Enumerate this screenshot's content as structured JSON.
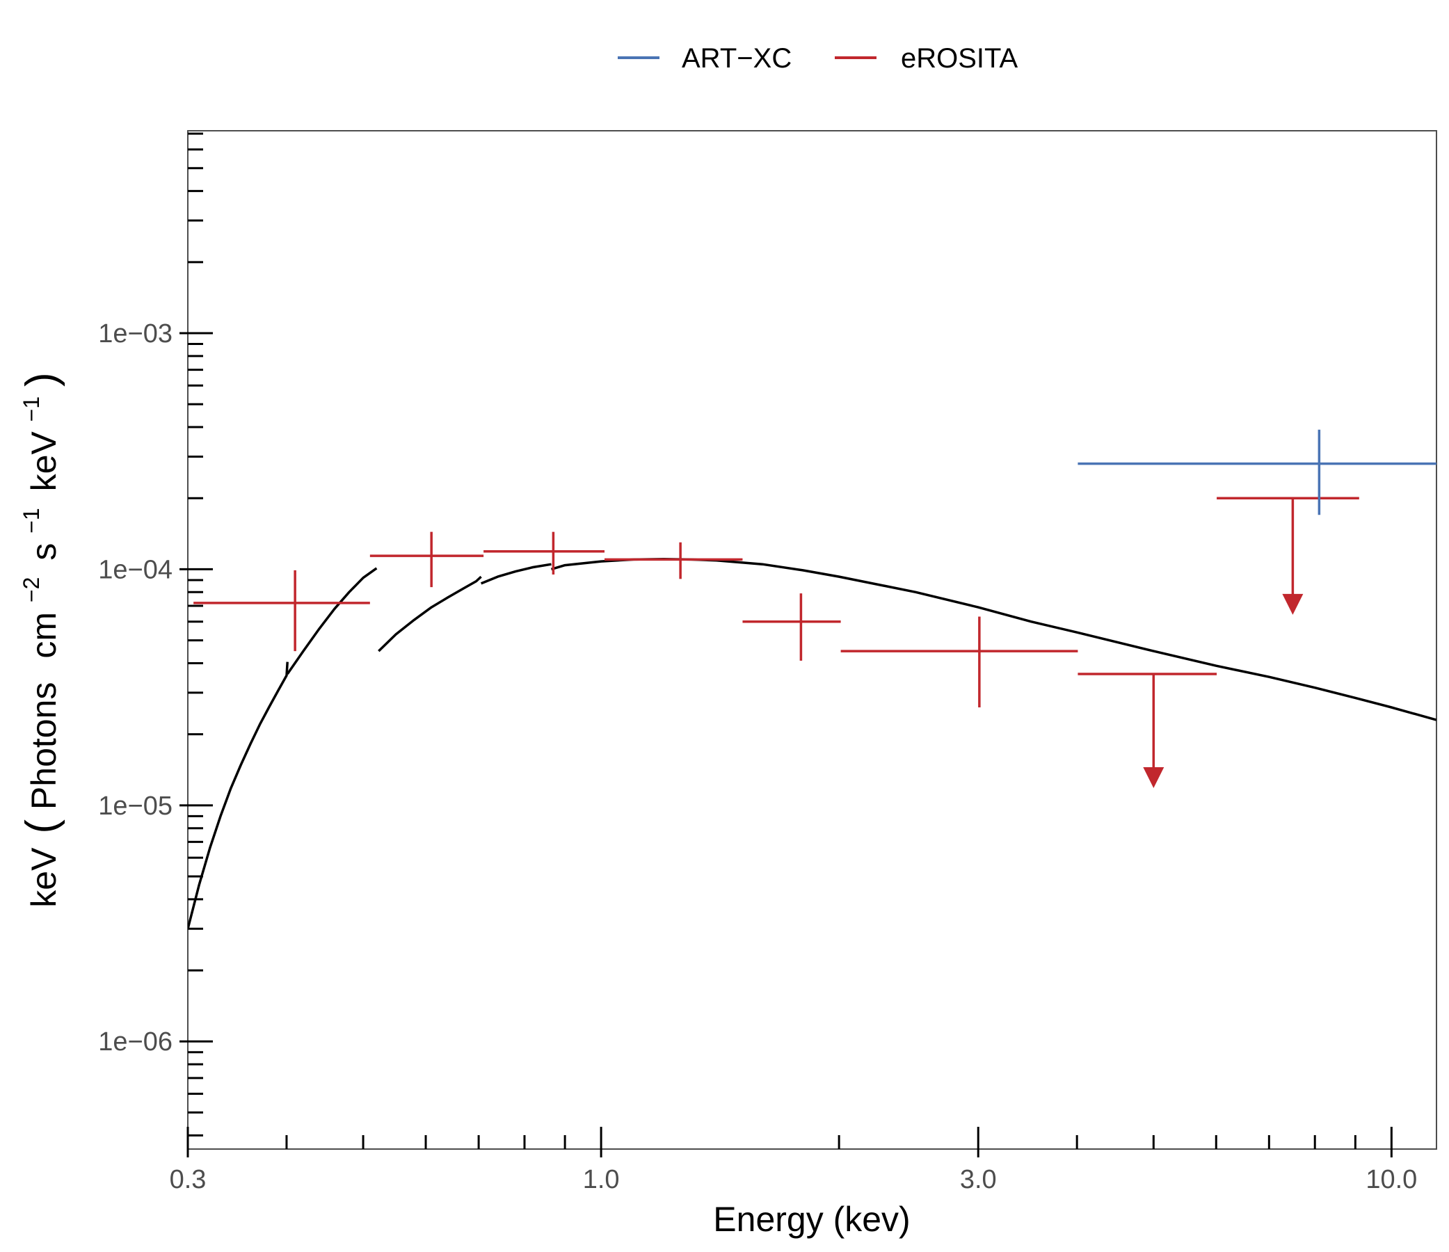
{
  "chart_data": {
    "type": "scatter",
    "title": "",
    "xlabel": "Energy (kev)",
    "ylabel": {
      "parts": [
        "keV",
        "(",
        "Photons",
        "cm",
        "−2",
        "s",
        "−1",
        "keV",
        "−1",
        ")"
      ]
    },
    "x_scale": "log",
    "y_scale": "log",
    "xlim": [
      0.3,
      11.4
    ],
    "ylim": [
      3.5e-07,
      0.0072
    ],
    "x_ticks": [
      {
        "value": 0.3,
        "label": "0.3"
      },
      {
        "value": 1.0,
        "label": "1.0"
      },
      {
        "value": 3.0,
        "label": "3.0"
      },
      {
        "value": 10.0,
        "label": "10.0"
      }
    ],
    "x_minor_ticks": [
      0.4,
      0.5,
      0.6,
      0.7,
      0.8,
      0.9,
      2.0,
      4.0,
      5.0,
      6.0,
      7.0,
      8.0,
      9.0
    ],
    "y_ticks": [
      {
        "value": 1e-06,
        "label": "1e−06"
      },
      {
        "value": 1e-05,
        "label": "1e−05"
      },
      {
        "value": 0.0001,
        "label": "1e−04"
      },
      {
        "value": 0.001,
        "label": "1e−03"
      }
    ],
    "y_minor_ticks": [
      4e-07,
      5e-07,
      6e-07,
      7e-07,
      8e-07,
      9e-07,
      2e-06,
      3e-06,
      4e-06,
      5e-06,
      6e-06,
      7e-06,
      8e-06,
      9e-06,
      2e-05,
      3e-05,
      4e-05,
      5e-05,
      6e-05,
      7e-05,
      8e-05,
      9e-05,
      0.0002,
      0.0003,
      0.0004,
      0.0005,
      0.0006,
      0.0007,
      0.0008,
      0.0009,
      0.002,
      0.003,
      0.004,
      0.005,
      0.006,
      0.007
    ],
    "grid": false,
    "legend": {
      "position": "top",
      "entries": [
        {
          "name": "ART−XC",
          "color": "#4a74b4"
        },
        {
          "name": "eROSITA",
          "color": "#c1272d"
        }
      ]
    },
    "series": [
      {
        "name": "eROSITA",
        "color": "#c1272d",
        "points": [
          {
            "x": 0.41,
            "xlo": 0.305,
            "xhi": 0.51,
            "y": 7.2e-05,
            "ylo": 4.5e-05,
            "yhi": 9.9e-05
          },
          {
            "x": 0.61,
            "xlo": 0.51,
            "xhi": 0.71,
            "y": 0.000114,
            "ylo": 8.4e-05,
            "yhi": 0.000144
          },
          {
            "x": 0.87,
            "xlo": 0.71,
            "xhi": 1.01,
            "y": 0.000119,
            "ylo": 9.5e-05,
            "yhi": 0.000144
          },
          {
            "x": 1.26,
            "xlo": 1.01,
            "xhi": 1.51,
            "y": 0.00011,
            "ylo": 9.1e-05,
            "yhi": 0.00013
          },
          {
            "x": 1.79,
            "xlo": 1.51,
            "xhi": 2.01,
            "y": 6e-05,
            "ylo": 4.1e-05,
            "yhi": 7.9e-05
          },
          {
            "x": 3.01,
            "xlo": 2.01,
            "xhi": 4.01,
            "y": 4.5e-05,
            "ylo": 2.6e-05,
            "yhi": 6.3e-05
          }
        ],
        "upper_limits": [
          {
            "x": 5.0,
            "xlo": 4.01,
            "xhi": 6.01,
            "y": 3.6e-05,
            "arrow_to": 1.2e-05
          },
          {
            "x": 7.5,
            "xlo": 6.01,
            "xhi": 9.1,
            "y": 0.0002,
            "arrow_to": 6.5e-05
          }
        ]
      },
      {
        "name": "ART−XC",
        "color": "#4a74b4",
        "points": [
          {
            "x": 8.1,
            "xlo": 4.01,
            "xhi": 11.4,
            "y": 0.00028,
            "ylo": 0.00017,
            "yhi": 0.00039
          }
        ]
      }
    ],
    "model": {
      "color": "#000000",
      "segments": [
        [
          [
            0.3,
            3e-06
          ],
          [
            0.31,
            4.6e-06
          ],
          [
            0.32,
            6.6e-06
          ],
          [
            0.33,
            9e-06
          ],
          [
            0.34,
            1.18e-05
          ],
          [
            0.35,
            1.48e-05
          ],
          [
            0.36,
            1.82e-05
          ],
          [
            0.37,
            2.2e-05
          ],
          [
            0.38,
            2.6e-05
          ],
          [
            0.39,
            3.05e-05
          ],
          [
            0.4,
            3.55e-05
          ],
          [
            0.401,
            4.05e-05
          ]
        ],
        [
          [
            0.401,
            3.6e-05
          ],
          [
            0.42,
            4.5e-05
          ],
          [
            0.44,
            5.6e-05
          ],
          [
            0.46,
            6.8e-05
          ],
          [
            0.48,
            8e-05
          ],
          [
            0.5,
            9.2e-05
          ],
          [
            0.52,
            0.000101
          ]
        ],
        [
          [
            0.523,
            4.5e-05
          ],
          [
            0.55,
            5.3e-05
          ],
          [
            0.58,
            6.1e-05
          ],
          [
            0.61,
            6.9e-05
          ],
          [
            0.64,
            7.6e-05
          ],
          [
            0.67,
            8.3e-05
          ],
          [
            0.695,
            8.9e-05
          ],
          [
            0.705,
            9.3e-05
          ]
        ],
        [
          [
            0.705,
            8.7e-05
          ],
          [
            0.74,
            9.3e-05
          ],
          [
            0.78,
            9.8e-05
          ],
          [
            0.82,
            0.000102
          ],
          [
            0.865,
            0.000105
          ]
        ],
        [
          [
            0.865,
            0.0001
          ],
          [
            0.9,
            0.000104
          ],
          [
            1.0,
            0.000108
          ],
          [
            1.1,
            0.00011
          ],
          [
            1.2,
            0.0001105
          ],
          [
            1.3,
            0.00011
          ],
          [
            1.4,
            0.000109
          ],
          [
            1.6,
            0.000105
          ],
          [
            1.8,
            9.9e-05
          ],
          [
            2.0,
            9.3e-05
          ],
          [
            2.5,
            8e-05
          ],
          [
            3.0,
            6.9e-05
          ],
          [
            3.5,
            6e-05
          ],
          [
            4.0,
            5.4e-05
          ],
          [
            5.0,
            4.5e-05
          ],
          [
            6.0,
            3.9e-05
          ],
          [
            7.0,
            3.5e-05
          ],
          [
            8.0,
            3.15e-05
          ],
          [
            9.0,
            2.85e-05
          ],
          [
            10.0,
            2.6e-05
          ],
          [
            11.4,
            2.3e-05
          ]
        ]
      ]
    }
  }
}
